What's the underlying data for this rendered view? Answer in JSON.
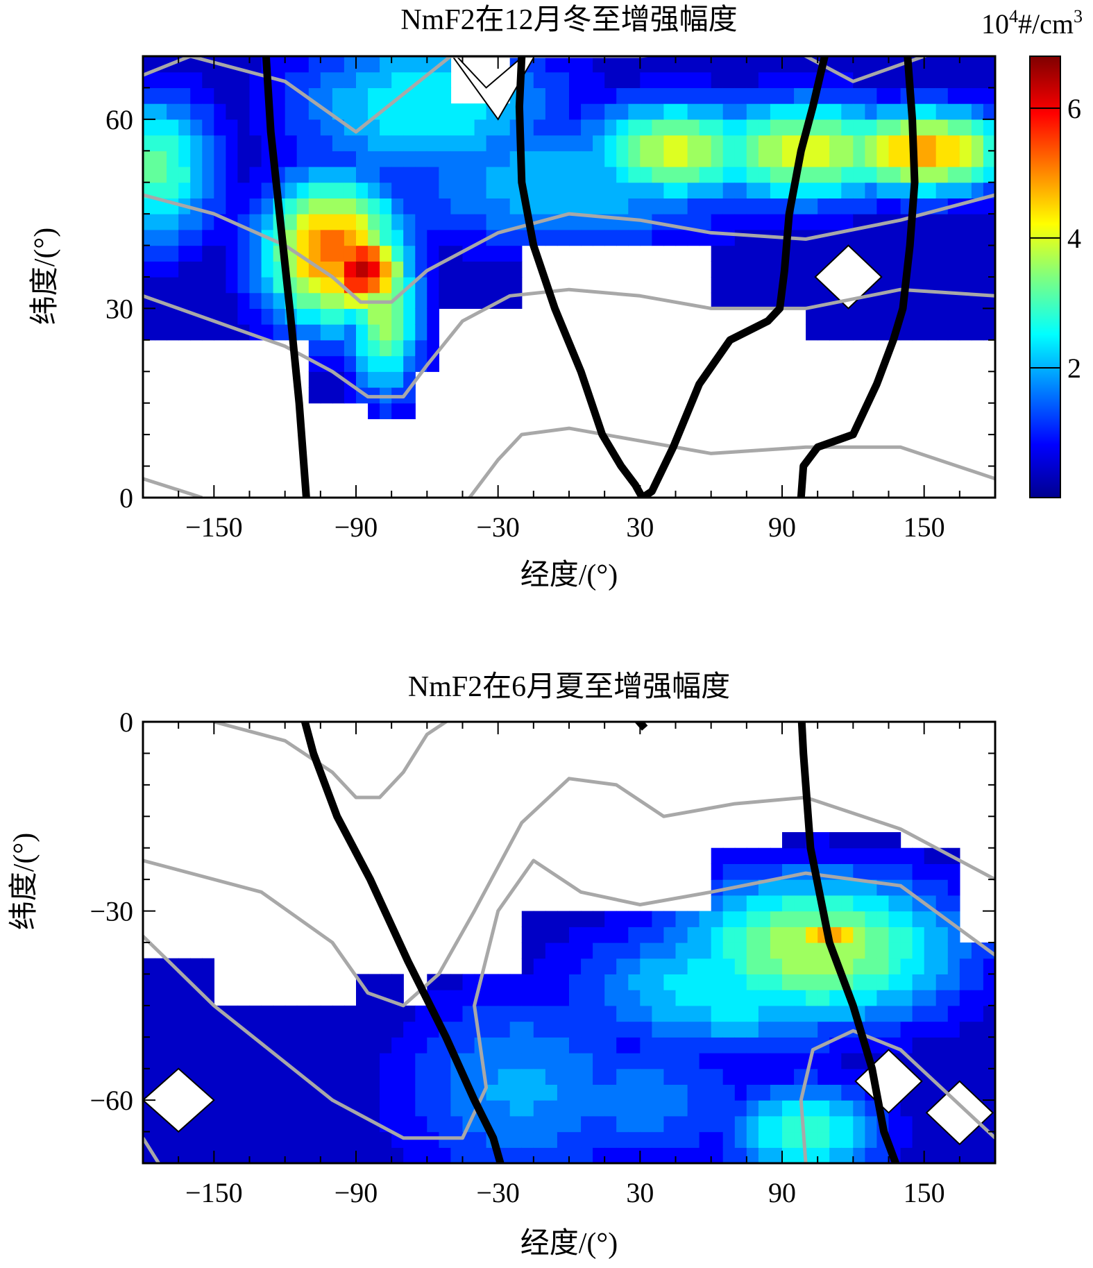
{
  "chart_data": [
    {
      "type": "heatmap",
      "title": "NmF2在12月冬至增强幅度",
      "xlabel": "经度/(°)",
      "ylabel": "纬度/(°)",
      "xlim": [
        -180,
        180
      ],
      "ylim": [
        0,
        70
      ],
      "x_ticks": [
        -150,
        -90,
        -30,
        30,
        90,
        150
      ],
      "y_ticks": [
        0,
        30,
        60
      ],
      "colorbar": {
        "unit_base": "10",
        "unit_exp": "4",
        "unit_suffix": "#/cm",
        "unit_suffix_exp": "3",
        "range": [
          0,
          6.8
        ],
        "ticks": [
          2,
          4,
          6
        ],
        "colormap": "jet"
      },
      "blobs": [
        {
          "x": -88,
          "y": 36,
          "value": 6.3,
          "sx": 14,
          "sy": 5
        },
        {
          "x": -100,
          "y": 39,
          "value": 5.2,
          "sx": 22,
          "sy": 9
        },
        {
          "x": -78,
          "y": 30,
          "value": 3.8,
          "sx": 12,
          "sy": 10
        },
        {
          "x": 150,
          "y": 55,
          "value": 4.9,
          "sx": 28,
          "sy": 5
        },
        {
          "x": 100,
          "y": 55,
          "value": 4.1,
          "sx": 35,
          "sy": 6
        },
        {
          "x": 45,
          "y": 55,
          "value": 3.9,
          "sx": 30,
          "sy": 6
        },
        {
          "x": -175,
          "y": 52,
          "value": 3.2,
          "sx": 20,
          "sy": 9
        },
        {
          "x": -60,
          "y": 62,
          "value": 2.6,
          "sx": 45,
          "sy": 9
        },
        {
          "x": 0,
          "y": 50,
          "value": 2.2,
          "sx": 60,
          "sy": 8
        }
      ],
      "black_lines": [
        {
          "x": [
            -128,
            -126,
            -122,
            -118,
            -114,
            -111
          ],
          "y": [
            70,
            58,
            44,
            30,
            15,
            0
          ]
        },
        {
          "x": [
            -20,
            -21,
            -20,
            -15,
            -6,
            5,
            14,
            22,
            28,
            31,
            35,
            44,
            55,
            68,
            84,
            89,
            91,
            93,
            98,
            103,
            108
          ],
          "y": [
            70,
            62,
            50,
            40,
            30,
            20,
            10,
            5,
            2,
            0,
            1,
            8,
            18,
            25,
            28,
            30,
            36,
            45,
            55,
            62,
            70
          ]
        },
        {
          "x": [
            98,
            99,
            105,
            120,
            130,
            137,
            141,
            144,
            146,
            145,
            143
          ],
          "y": [
            0,
            5,
            8,
            10,
            18,
            25,
            30,
            40,
            50,
            60,
            70
          ]
        }
      ],
      "gray_lines": [
        {
          "x": [
            -180,
            -160,
            -120,
            -90,
            -70,
            -50,
            -30,
            0,
            30,
            60,
            90,
            120,
            150,
            180
          ],
          "y": [
            67,
            70,
            66,
            58,
            64,
            70,
            70,
            70,
            70,
            71,
            72,
            66,
            70,
            73
          ]
        },
        {
          "x": [
            -180,
            -150,
            -120,
            -100,
            -88,
            -75,
            -60,
            -30,
            0,
            30,
            60,
            100,
            140,
            180
          ],
          "y": [
            48,
            45,
            40,
            35,
            31,
            31,
            36,
            42,
            45,
            44,
            42,
            41,
            44,
            48
          ]
        },
        {
          "x": [
            -180,
            -150,
            -120,
            -100,
            -85,
            -70,
            -60,
            -45,
            -25,
            0,
            30,
            60,
            100,
            140,
            180
          ],
          "y": [
            32,
            28,
            24,
            20,
            16,
            16,
            21,
            28,
            32,
            33,
            32,
            30,
            30,
            33,
            32
          ]
        },
        {
          "x": [
            -180,
            -155
          ],
          "y": [
            3,
            0
          ]
        },
        {
          "x": [
            -42,
            -30,
            -20,
            0,
            30,
            60,
            100,
            140,
            180
          ],
          "y": [
            0,
            6,
            10,
            11,
            9,
            7,
            8,
            8,
            3
          ]
        }
      ],
      "white_holes": [
        {
          "x": [
            -55,
            -35,
            -10,
            -30,
            -55
          ],
          "y": [
            73,
            65,
            73,
            60,
            73
          ]
        },
        {
          "x": [
            118,
            104,
            118,
            132,
            118
          ],
          "y": [
            40,
            35,
            30,
            35,
            40
          ]
        }
      ]
    },
    {
      "type": "heatmap",
      "title": "NmF2在6月夏至增强幅度",
      "xlabel": "经度/(°)",
      "ylabel": "纬度/(°)",
      "xlim": [
        -180,
        180
      ],
      "ylim": [
        -70,
        0
      ],
      "x_ticks": [
        -150,
        -90,
        -30,
        30,
        90,
        150
      ],
      "y_ticks": [
        -60,
        -30,
        0
      ],
      "blobs": [
        {
          "x": 110,
          "y": -34,
          "value": 4.7,
          "sx": 18,
          "sy": 3
        },
        {
          "x": 105,
          "y": -36,
          "value": 3.8,
          "sx": 45,
          "sy": 9
        },
        {
          "x": 70,
          "y": -42,
          "value": 2.6,
          "sx": 50,
          "sy": 8
        },
        {
          "x": 100,
          "y": -65,
          "value": 3.0,
          "sx": 25,
          "sy": 6
        },
        {
          "x": -20,
          "y": -58,
          "value": 1.9,
          "sx": 40,
          "sy": 12
        },
        {
          "x": 30,
          "y": -60,
          "value": 1.6,
          "sx": 40,
          "sy": 8
        }
      ],
      "black_lines": [
        {
          "x": [
            -113,
            -108,
            -98,
            -84,
            -68,
            -52,
            -40,
            -32,
            -29
          ],
          "y": [
            2,
            -5,
            -15,
            -25,
            -38,
            -50,
            -60,
            -66,
            -70
          ]
        },
        {
          "x": [
            98,
            99,
            102,
            110,
            120,
            128,
            133,
            138
          ],
          "y": [
            2,
            -5,
            -20,
            -35,
            -45,
            -55,
            -65,
            -70
          ]
        },
        {
          "x": [
            25,
            32
          ],
          "y": [
            2,
            -1
          ]
        }
      ],
      "gray_lines": [
        {
          "x": [
            -150,
            -120,
            -100,
            -90,
            -80,
            -70,
            -60,
            -40
          ],
          "y": [
            0,
            -3,
            -8,
            -12,
            -12,
            -8,
            -2,
            3
          ]
        },
        {
          "x": [
            -180,
            -130,
            -100,
            -85,
            -70,
            -55,
            -40,
            -20,
            0,
            20,
            40,
            70,
            100,
            140,
            180
          ],
          "y": [
            -22,
            -27,
            -35,
            -43,
            -45,
            -40,
            -30,
            -16,
            -9,
            -10,
            -15,
            -13,
            -12,
            -17,
            -25
          ]
        },
        {
          "x": [
            -180,
            -150,
            -100,
            -70,
            -45,
            -35,
            -40,
            -30,
            -15,
            5,
            30,
            60,
            100,
            140,
            180
          ],
          "y": [
            -34,
            -45,
            -60,
            -66,
            -66,
            -58,
            -45,
            -30,
            -22,
            -27,
            -29,
            -27,
            -24,
            -26,
            -37
          ]
        },
        {
          "x": [
            -180,
            -170,
            -165
          ],
          "y": [
            -66,
            -72,
            -78
          ]
        },
        {
          "x": [
            100,
            98,
            103,
            120,
            140,
            160,
            180
          ],
          "y": [
            -70,
            -60,
            -52,
            -49,
            -52,
            -59,
            -66
          ]
        }
      ],
      "white_holes": [
        {
          "x": [
            -165,
            -180,
            -165,
            -150,
            -165
          ],
          "y": [
            -55,
            -60,
            -65,
            -60,
            -55
          ]
        },
        {
          "x": [
            135,
            121,
            135,
            149,
            135
          ],
          "y": [
            -52,
            -57,
            -62,
            -57,
            -52
          ]
        },
        {
          "x": [
            165,
            151,
            165,
            179,
            165
          ],
          "y": [
            -57,
            -62,
            -67,
            -62,
            -57
          ]
        }
      ]
    }
  ]
}
